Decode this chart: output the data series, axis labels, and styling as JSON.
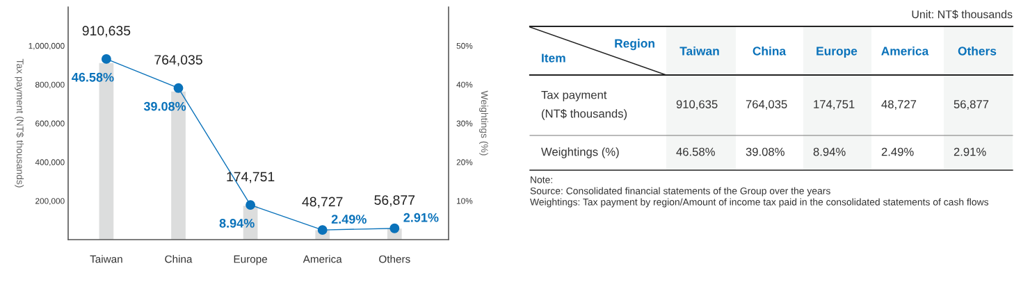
{
  "chart_data": [
    {
      "type": "bar",
      "ylabel": "Tax payment (NT$ thousands)",
      "y2label": "Weightings (%)",
      "categories": [
        "Taiwan",
        "China",
        "Europe",
        "America",
        "Others"
      ],
      "series": [
        {
          "type": "bar",
          "color": "#dcdddd",
          "values": [
            910635,
            764035,
            174751,
            48727,
            56877
          ],
          "value_labels": [
            "910,635",
            "764,035",
            "174,751",
            "48,727",
            "56,877"
          ]
        },
        {
          "type": "line",
          "axis": "y2",
          "color": "#0a72ba",
          "marker": "circle",
          "values": [
            46.58,
            39.08,
            8.94,
            2.49,
            2.91
          ],
          "value_labels": [
            "46.58%",
            "39.08%",
            "8.94%",
            "2.49%",
            "2.91%"
          ]
        }
      ],
      "ylim": [
        0,
        1200000
      ],
      "yticks": [
        {
          "value": 200000,
          "label": "200,000"
        },
        {
          "value": 400000,
          "label": "400,000"
        },
        {
          "value": 600000,
          "label": "600,000"
        },
        {
          "value": 800000,
          "label": "800,000"
        },
        {
          "value": 1000000,
          "label": "1,000,000"
        }
      ],
      "y2lim": [
        0,
        60
      ],
      "y2ticks": [
        {
          "value": 10,
          "label": "10%"
        },
        {
          "value": 20,
          "label": "20%"
        },
        {
          "value": 30,
          "label": "30%"
        },
        {
          "value": 40,
          "label": "40%"
        },
        {
          "value": 50,
          "label": "50%"
        }
      ],
      "grid": false
    },
    {
      "type": "other",
      "title": "Unit: NT$ thousands",
      "xlabel": "Region",
      "ylabel": "Item",
      "categories": [
        "Taiwan",
        "China",
        "Europe",
        "America",
        "Others"
      ],
      "y_categories": [
        "Tax payment\n(NT$ thousands)",
        "Weightings (%)"
      ],
      "cell_labels": [
        [
          "910,635",
          "764,035",
          "174,751",
          "48,727",
          "56,877"
        ],
        [
          "46.58%",
          "39.08%",
          "8.94%",
          "2.49%",
          "2.91%"
        ]
      ],
      "annotations": [
        "Note:",
        "Source: Consolidated financial statements of the Group over the years",
        "Weightings: Tax payment by region/Amount of income tax paid in the consolidated statements of cash flows"
      ]
    }
  ]
}
